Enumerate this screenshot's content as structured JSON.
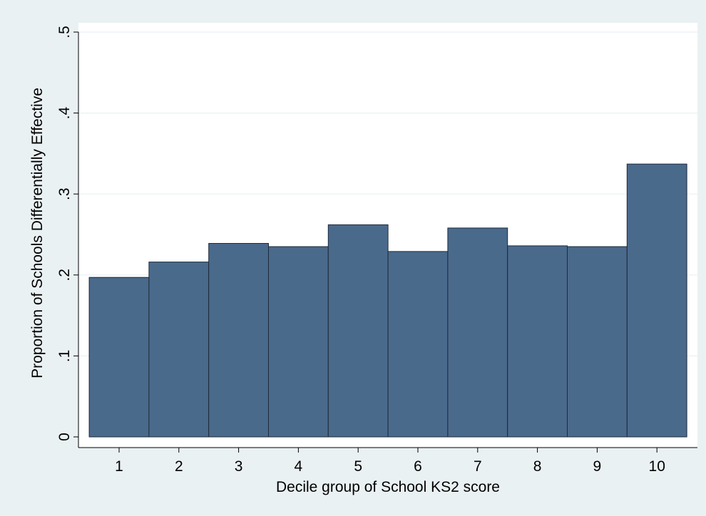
{
  "chart_data": {
    "type": "bar",
    "title": "",
    "xlabel": "Decile group of School KS2 score",
    "ylabel": "Proportion of Schools Differentially Effective",
    "categories": [
      "1",
      "2",
      "3",
      "4",
      "5",
      "6",
      "7",
      "8",
      "9",
      "10"
    ],
    "values": [
      0.197,
      0.216,
      0.239,
      0.235,
      0.262,
      0.229,
      0.258,
      0.236,
      0.235,
      0.337
    ],
    "ylim": [
      0,
      0.5
    ],
    "yticks": [
      0,
      0.1,
      0.2,
      0.3,
      0.4,
      0.5
    ],
    "ytick_labels": [
      "0",
      ".1",
      ".2",
      ".3",
      ".4",
      ".5"
    ],
    "grid": true,
    "colors": {
      "bar": "#4a6a8c",
      "bar_edge": "#1d2a3a",
      "plot_background": "#ffffff",
      "page_background": "#eaf1f3",
      "grid": "#eaf1f3"
    }
  }
}
